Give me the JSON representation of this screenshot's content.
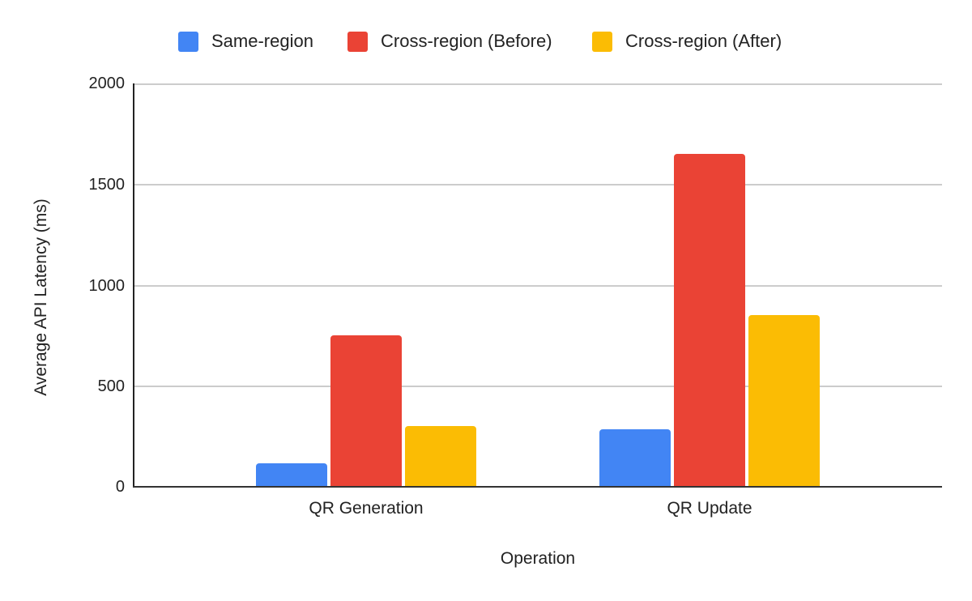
{
  "chart_data": {
    "type": "bar",
    "title": "",
    "xlabel": "Operation",
    "ylabel": "Average API Latency (ms)",
    "ylim": [
      0,
      2000
    ],
    "yticks": [
      "0",
      "500",
      "1000",
      "1500",
      "2000"
    ],
    "grid": true,
    "legend_position": "top",
    "categories": [
      "QR Generation",
      "QR Update"
    ],
    "series": [
      {
        "name": "Same-region",
        "color": "#4285f4",
        "values": [
          118,
          285
        ]
      },
      {
        "name": "Cross-region (Before)",
        "color": "#ea4335",
        "values": [
          750,
          1650
        ]
      },
      {
        "name": "Cross-region (After)",
        "color": "#fbbc04",
        "values": [
          300,
          850
        ]
      }
    ]
  }
}
